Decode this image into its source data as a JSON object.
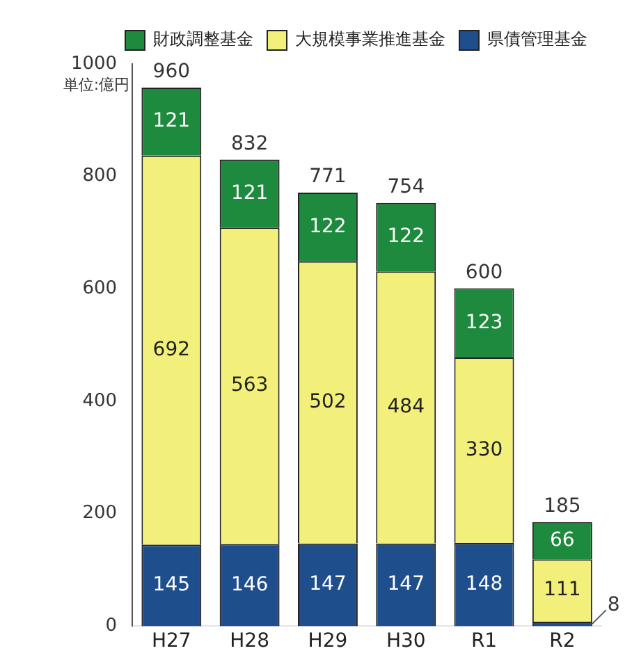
{
  "chart_data": {
    "type": "bar",
    "stacked": true,
    "ylabel": "単位:億円",
    "categories": [
      "H27",
      "H28",
      "H29",
      "H30",
      "R1",
      "R2"
    ],
    "series": [
      {
        "name": "県債管理基金",
        "color": "#1f4e8c",
        "values": [
          145,
          146,
          147,
          147,
          148,
          8
        ]
      },
      {
        "name": "大規模事業推進基金",
        "color": "#f2f07a",
        "values": [
          692,
          563,
          502,
          484,
          330,
          111
        ]
      },
      {
        "name": "財政調整基金",
        "color": "#1e8a3e",
        "values": [
          121,
          121,
          122,
          122,
          123,
          66
        ]
      }
    ],
    "totals": [
      "960",
      "832",
      "771",
      "754",
      "600",
      "185"
    ],
    "ylim": [
      0,
      1000
    ],
    "yticks": [
      0,
      200,
      400,
      600,
      800,
      1000
    ],
    "grid": false,
    "legend": "top right",
    "data_labels": true
  }
}
